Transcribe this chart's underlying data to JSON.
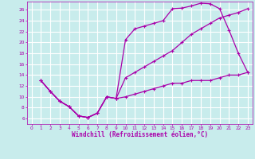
{
  "title": "",
  "xlabel": "Windchill (Refroidissement éolien,°C)",
  "ylabel": "",
  "bg_color": "#c8ecec",
  "grid_color": "#ffffff",
  "line_color": "#aa00aa",
  "xlim": [
    -0.5,
    23.5
  ],
  "ylim": [
    5,
    27.5
  ],
  "xticks": [
    0,
    1,
    2,
    3,
    4,
    5,
    6,
    7,
    8,
    9,
    10,
    11,
    12,
    13,
    14,
    15,
    16,
    17,
    18,
    19,
    20,
    21,
    22,
    23
  ],
  "yticks": [
    6,
    8,
    10,
    12,
    14,
    16,
    18,
    20,
    22,
    24,
    26
  ],
  "line1_x": [
    1,
    2,
    3,
    4,
    5,
    6,
    7,
    8,
    9,
    10,
    11,
    12,
    13,
    14,
    15,
    16,
    17,
    18,
    19,
    20,
    21,
    22,
    23
  ],
  "line1_y": [
    13,
    11,
    9.2,
    8.2,
    6.5,
    6.2,
    7,
    10,
    9.7,
    20.5,
    22.5,
    23,
    23.5,
    24,
    26.2,
    26.3,
    26.7,
    27.2,
    27.1,
    26.2,
    22.3,
    18,
    14.5
  ],
  "line2_x": [
    1,
    2,
    3,
    4,
    5,
    6,
    7,
    8,
    9,
    10,
    11,
    12,
    13,
    14,
    15,
    16,
    17,
    18,
    19,
    20,
    21,
    22,
    23
  ],
  "line2_y": [
    13,
    11,
    9.2,
    8.2,
    6.5,
    6.2,
    7,
    10,
    9.7,
    13.5,
    14.5,
    15.5,
    16.5,
    17.5,
    18.5,
    20,
    21.5,
    22.5,
    23.5,
    24.5,
    25,
    25.5,
    26.2
  ],
  "line3_x": [
    1,
    2,
    3,
    4,
    5,
    6,
    7,
    8,
    9,
    10,
    11,
    12,
    13,
    14,
    15,
    16,
    17,
    18,
    19,
    20,
    21,
    22,
    23
  ],
  "line3_y": [
    13,
    11,
    9.2,
    8.2,
    6.5,
    6.2,
    7,
    10,
    9.7,
    10,
    10.5,
    11,
    11.5,
    12,
    12.5,
    12.5,
    13,
    13,
    13,
    13.5,
    14,
    14,
    14.5
  ]
}
